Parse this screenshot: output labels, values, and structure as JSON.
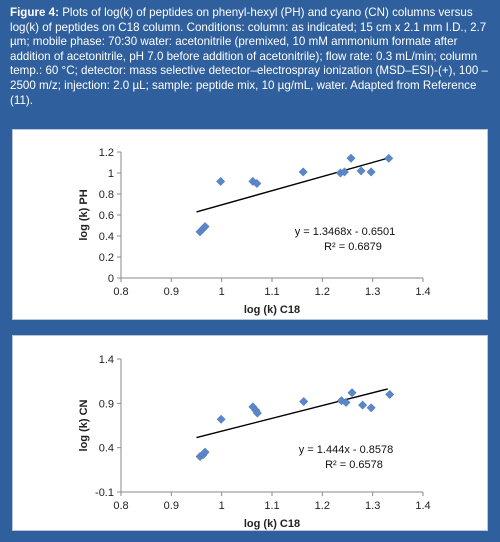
{
  "caption": {
    "lead": "Figure 4:",
    "body": " Plots of log(k) of peptides on phenyl-hexyl (PH) and cyano (CN) columns versus log(k) of peptides on C18 column.  Conditions: column: as indicated; 15 cm x 2.1 mm I.D., 2.7 µm; mobile phase: 70:30 water: acetonitrile (premixed, 10 mM ammonium formate after addition of acetonitrile, pH 7.0 before addition of acetonitrile); flow rate: 0.3 mL/min; column temp.: 60 °C; detector: mass selective detector–electrospray ionization (MSD–ESI)-(+), 100 – 2500 m/z; injection: 2.0 µL; sample: peptide mix, 10 µg/mL, water. Adapted from Reference (11)."
  },
  "colors": {
    "panel_bg": "#2f5f9c",
    "marker": "#5b87c9",
    "trend": "#000000"
  },
  "chart_data": [
    {
      "type": "scatter",
      "xlabel": "log (k) C18",
      "ylabel": "log (k) PH",
      "xlim": [
        0.8,
        1.4
      ],
      "ylim": [
        0,
        1.2
      ],
      "xticks": [
        "0.8",
        "0.9",
        "1",
        "1.1",
        "1.2",
        "1.3",
        "1.4"
      ],
      "yticks": [
        "0",
        "0.2",
        "0.4",
        "0.6",
        "0.8",
        "1",
        "1.2"
      ],
      "points": [
        [
          0.957,
          0.44
        ],
        [
          0.963,
          0.47
        ],
        [
          0.967,
          0.49
        ],
        [
          0.998,
          0.92
        ],
        [
          1.062,
          0.92
        ],
        [
          1.07,
          0.9
        ],
        [
          1.162,
          1.01
        ],
        [
          1.236,
          1.0
        ],
        [
          1.244,
          1.01
        ],
        [
          1.257,
          1.14
        ],
        [
          1.277,
          1.02
        ],
        [
          1.297,
          1.01
        ],
        [
          1.332,
          1.14
        ]
      ],
      "trendline": {
        "slope": 1.3468,
        "intercept": -0.6501,
        "x_range": [
          0.95,
          1.33
        ]
      },
      "equation": "y = 1.3468x - 0.6501",
      "r2": "R² = 0.6879"
    },
    {
      "type": "scatter",
      "xlabel": "log (k) C18",
      "ylabel": "log (k) CN",
      "xlim": [
        0.8,
        1.4
      ],
      "ylim": [
        -0.1,
        1.4
      ],
      "xticks": [
        "0.8",
        "0.9",
        "1",
        "1.1",
        "1.2",
        "1.3",
        "1.4"
      ],
      "yticks": [
        "-0.1",
        "0.4",
        "0.9",
        "1.4"
      ],
      "points": [
        [
          0.957,
          0.3
        ],
        [
          0.963,
          0.32
        ],
        [
          0.967,
          0.35
        ],
        [
          0.999,
          0.72
        ],
        [
          1.062,
          0.86
        ],
        [
          1.068,
          0.82
        ],
        [
          1.071,
          0.79
        ],
        [
          1.163,
          0.92
        ],
        [
          1.238,
          0.93
        ],
        [
          1.247,
          0.91
        ],
        [
          1.259,
          1.02
        ],
        [
          1.28,
          0.88
        ],
        [
          1.297,
          0.85
        ],
        [
          1.334,
          1.0
        ]
      ],
      "trendline": {
        "slope": 1.444,
        "intercept": -0.8578,
        "x_range": [
          0.95,
          1.33
        ]
      },
      "equation": "y = 1.444x - 0.8578",
      "r2": "R² = 0.6578"
    }
  ]
}
